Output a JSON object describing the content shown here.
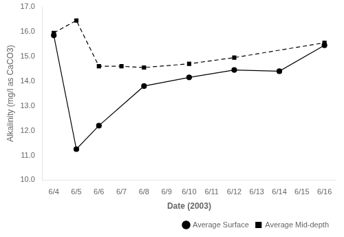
{
  "chart_data": {
    "type": "line",
    "xlabel": "Date (2003)",
    "ylabel": "Alkalinity (mg/l as CaCO3)",
    "categories": [
      "6/4",
      "6/5",
      "6/6",
      "6/7",
      "6/8",
      "6/9",
      "6/10",
      "6/11",
      "6/12",
      "6/13",
      "6/14",
      "6/15",
      "6/16"
    ],
    "series": [
      {
        "name": "Average Surface",
        "color": "#000000",
        "marker": "circle",
        "line_style": "solid",
        "values": [
          15.85,
          11.25,
          12.2,
          null,
          13.8,
          null,
          14.15,
          null,
          14.45,
          null,
          14.4,
          null,
          15.45
        ]
      },
      {
        "name": "Average Mid-depth",
        "color": "#000000",
        "marker": "square",
        "line_style": "dashed",
        "values": [
          15.95,
          16.45,
          14.6,
          14.6,
          14.55,
          null,
          14.7,
          null,
          14.95,
          null,
          null,
          null,
          15.55
        ]
      }
    ],
    "ylim": [
      10,
      17
    ],
    "yticks": [
      {
        "value": 10,
        "label": "10.0"
      },
      {
        "value": 11,
        "label": "11.0"
      },
      {
        "value": 12,
        "label": "12.0"
      },
      {
        "value": 13,
        "label": "13.0"
      },
      {
        "value": 14,
        "label": "14.0"
      },
      {
        "value": 15,
        "label": "15.0"
      },
      {
        "value": 16,
        "label": "16.0"
      },
      {
        "value": 17,
        "label": "17.0"
      }
    ],
    "grid": false,
    "legend": "lower right"
  }
}
